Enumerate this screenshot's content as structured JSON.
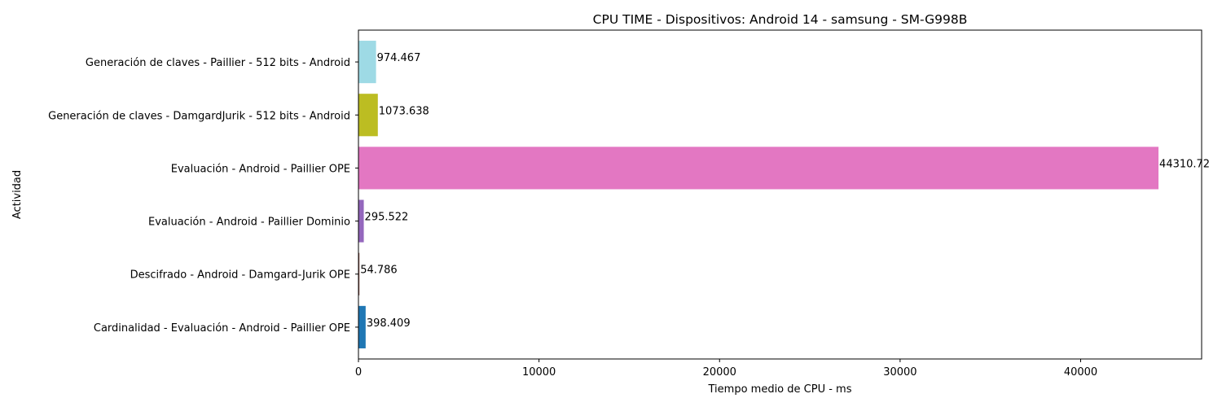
{
  "chart_data": {
    "type": "bar",
    "orientation": "horizontal",
    "title": "CPU TIME - Dispositivos: Android 14 - samsung - SM-G998B",
    "xlabel": "Tiempo medio de CPU - ms",
    "ylabel": "Actividad",
    "xlim": [
      0,
      46700
    ],
    "xticks": [
      0,
      10000,
      20000,
      30000,
      40000
    ],
    "xtick_labels": [
      "0",
      "10000",
      "20000",
      "30000",
      "40000"
    ],
    "grid": false,
    "legend": "none",
    "categories": [
      "Generación de claves - Paillier - 512 bits - Android",
      "Generación de claves - DamgardJurik - 512 bits - Android",
      "Evaluación - Android - Paillier OPE",
      "Evaluación - Android - Paillier Dominio",
      "Descifrado - Android - Damgard-Jurik OPE",
      "Cardinalidad - Evaluación - Android - Paillier OPE"
    ],
    "values": [
      974.467,
      1073.638,
      44310.72,
      295.522,
      54.786,
      398.409
    ],
    "value_labels": [
      "974.467",
      "1073.638",
      "44310.72",
      "295.522",
      "54.786",
      "398.409"
    ],
    "colors": [
      "#9edae5",
      "#bcbd22",
      "#e377c2",
      "#9467bd",
      "#8c564b",
      "#1f77b4"
    ]
  }
}
